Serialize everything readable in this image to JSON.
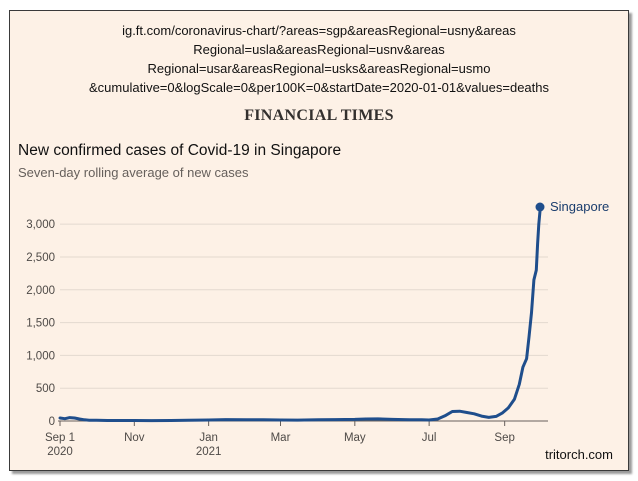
{
  "url_lines": [
    "ig.ft.com/coronavirus-chart/?areas=sgp&areasRegional=usny&areas",
    "Regional=usla&areasRegional=usnv&areas",
    "Regional=usar&areasRegional=usks&areasRegional=usmo",
    "&cumulative=0&logScale=0&per100K=0&startDate=2020-01-01&values=deaths"
  ],
  "masthead": "FINANCIAL TIMES",
  "credit": "tritorch.com",
  "colors": {
    "series": "#1f4e8c",
    "grid": "#e3d9cf",
    "background": "#fdf1e6"
  },
  "chart_data": {
    "type": "line",
    "title": "New confirmed cases of Covid-19 in Singapore",
    "subtitle": "Seven-day rolling average of new cases",
    "xlabel": "",
    "ylabel": "",
    "ylim": [
      0,
      3200
    ],
    "yticks": [
      {
        "value": 0,
        "label": "0"
      },
      {
        "value": 500,
        "label": "500"
      },
      {
        "value": 1000,
        "label": "1,000"
      },
      {
        "value": 1500,
        "label": "1,500"
      },
      {
        "value": 2000,
        "label": "2,000"
      },
      {
        "value": 2500,
        "label": "2,500"
      },
      {
        "value": 3000,
        "label": "3,000"
      }
    ],
    "xlim": [
      "2020-09-01",
      "2021-09-30"
    ],
    "xticks": [
      {
        "date": "2020-09-01",
        "label": "Sep 1",
        "year": "2020"
      },
      {
        "date": "2020-11-01",
        "label": "Nov",
        "year": ""
      },
      {
        "date": "2021-01-01",
        "label": "Jan",
        "year": "2021"
      },
      {
        "date": "2021-03-01",
        "label": "Mar",
        "year": ""
      },
      {
        "date": "2021-05-01",
        "label": "May",
        "year": ""
      },
      {
        "date": "2021-07-01",
        "label": "Jul",
        "year": ""
      },
      {
        "date": "2021-09-01",
        "label": "Sep",
        "year": ""
      }
    ],
    "grid": true,
    "legend": "end-of-line label",
    "series": [
      {
        "name": "Singapore",
        "points": [
          [
            "2020-09-01",
            45
          ],
          [
            "2020-09-05",
            35
          ],
          [
            "2020-09-09",
            52
          ],
          [
            "2020-09-13",
            45
          ],
          [
            "2020-09-17",
            30
          ],
          [
            "2020-09-21",
            18
          ],
          [
            "2020-09-25",
            12
          ],
          [
            "2020-10-01",
            10
          ],
          [
            "2020-10-10",
            8
          ],
          [
            "2020-10-20",
            7
          ],
          [
            "2020-11-01",
            8
          ],
          [
            "2020-11-15",
            6
          ],
          [
            "2020-12-01",
            8
          ],
          [
            "2020-12-15",
            10
          ],
          [
            "2021-01-01",
            15
          ],
          [
            "2021-01-15",
            22
          ],
          [
            "2021-02-01",
            20
          ],
          [
            "2021-02-15",
            18
          ],
          [
            "2021-03-01",
            15
          ],
          [
            "2021-03-15",
            14
          ],
          [
            "2021-04-01",
            18
          ],
          [
            "2021-04-15",
            22
          ],
          [
            "2021-05-01",
            25
          ],
          [
            "2021-05-10",
            30
          ],
          [
            "2021-05-20",
            32
          ],
          [
            "2021-06-01",
            25
          ],
          [
            "2021-06-15",
            20
          ],
          [
            "2021-06-25",
            18
          ],
          [
            "2021-07-01",
            15
          ],
          [
            "2021-07-08",
            30
          ],
          [
            "2021-07-14",
            80
          ],
          [
            "2021-07-20",
            145
          ],
          [
            "2021-07-26",
            150
          ],
          [
            "2021-08-01",
            130
          ],
          [
            "2021-08-07",
            110
          ],
          [
            "2021-08-13",
            75
          ],
          [
            "2021-08-19",
            55
          ],
          [
            "2021-08-25",
            70
          ],
          [
            "2021-08-30",
            120
          ],
          [
            "2021-09-04",
            200
          ],
          [
            "2021-09-09",
            330
          ],
          [
            "2021-09-13",
            560
          ],
          [
            "2021-09-16",
            820
          ],
          [
            "2021-09-19",
            950
          ],
          [
            "2021-09-21",
            1280
          ],
          [
            "2021-09-23",
            1650
          ],
          [
            "2021-09-25",
            2150
          ],
          [
            "2021-09-27",
            2300
          ],
          [
            "2021-09-28",
            2700
          ],
          [
            "2021-09-29",
            3000
          ],
          [
            "2021-09-30",
            3200
          ]
        ]
      }
    ]
  }
}
